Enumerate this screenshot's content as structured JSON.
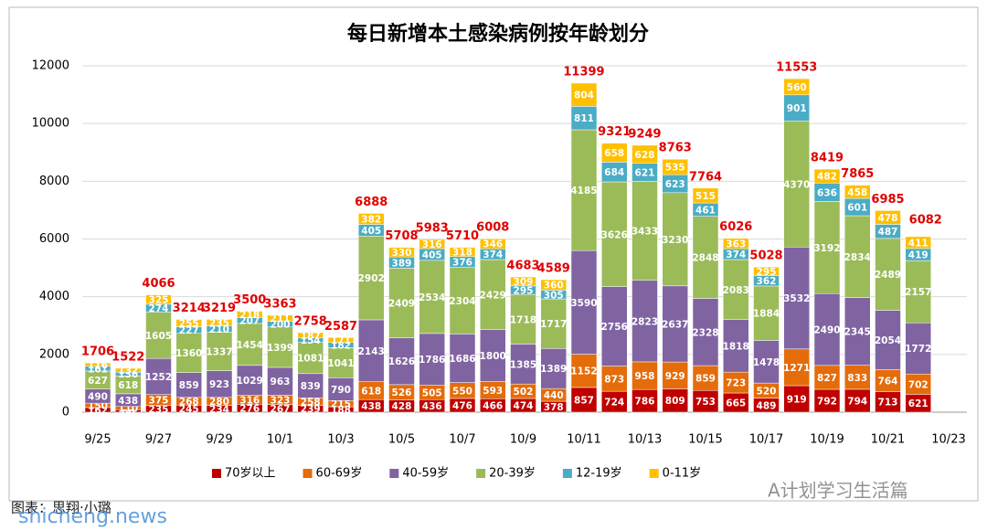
{
  "chart_data": {
    "type": "stacked-bar",
    "title": "每日新增本土感染病例按年龄划分",
    "categories": [
      "9/25",
      null,
      "9/27",
      null,
      "9/29",
      null,
      "10/1",
      null,
      "10/3",
      null,
      "10/5",
      null,
      "10/7",
      null,
      "10/9",
      null,
      "10/11",
      null,
      "10/13",
      null,
      "10/15",
      null,
      "10/17",
      null,
      "10/19",
      null,
      "10/21",
      null,
      "10/23"
    ],
    "series": [
      {
        "name": "70岁以上",
        "color": "#c00000",
        "values": [
          162,
          88,
          235,
          245,
          234,
          276,
          267,
          239,
          188,
          438,
          428,
          436,
          476,
          466,
          474,
          378,
          857,
          724,
          786,
          809,
          753,
          665,
          489,
          919,
          792,
          794,
          713,
          621,
          null
        ]
      },
      {
        "name": "60-69岁",
        "color": "#e46c0a",
        "values": [
          150,
          110,
          375,
          268,
          280,
          316,
          323,
          258,
          215,
          618,
          526,
          505,
          550,
          593,
          502,
          440,
          1152,
          873,
          958,
          929,
          859,
          723,
          520,
          1271,
          827,
          833,
          764,
          702,
          null
        ]
      },
      {
        "name": "40-59岁",
        "color": "#8064a2",
        "values": [
          490,
          438,
          1252,
          859,
          923,
          1029,
          963,
          839,
          790,
          2143,
          1626,
          1786,
          1686,
          1800,
          1385,
          1389,
          3590,
          2756,
          2823,
          2637,
          2328,
          1818,
          1478,
          3532,
          2490,
          2345,
          2054,
          1772,
          null
        ]
      },
      {
        "name": "20-39岁",
        "color": "#9bbb59",
        "values": [
          627,
          618,
          1605,
          1360,
          1337,
          1454,
          1399,
          1081,
          1041,
          2902,
          2409,
          2534,
          2304,
          2429,
          1718,
          1717,
          4185,
          3626,
          3433,
          3230,
          2848,
          2083,
          1884,
          4370,
          3192,
          2834,
          2489,
          2157,
          null
        ]
      },
      {
        "name": "12-19岁",
        "color": "#4bacc6",
        "values": [
          161,
          136,
          274,
          227,
          210,
          207,
          200,
          154,
          182,
          405,
          389,
          405,
          376,
          374,
          295,
          305,
          811,
          684,
          621,
          623,
          461,
          374,
          362,
          901,
          636,
          601,
          487,
          419,
          null
        ]
      },
      {
        "name": "0-11岁",
        "color": "#ffc000",
        "values": [
          116,
          132,
          325,
          255,
          235,
          218,
          211,
          187,
          171,
          382,
          330,
          316,
          318,
          346,
          309,
          360,
          804,
          658,
          628,
          535,
          515,
          363,
          295,
          560,
          482,
          458,
          478,
          411,
          null
        ]
      }
    ],
    "totals": [
      1706,
      1522,
      4066,
      3214,
      3219,
      3500,
      3363,
      2758,
      2587,
      6888,
      5708,
      5983,
      5710,
      6008,
      4683,
      4589,
      11399,
      9321,
      9249,
      8763,
      7764,
      6026,
      5028,
      11553,
      8419,
      7865,
      6985,
      6082,
      null
    ],
    "ylim": [
      0,
      12000
    ],
    "yticks": [
      0,
      2000,
      4000,
      6000,
      8000,
      10000,
      12000
    ],
    "grid": true,
    "legend": "bottom",
    "credit": "图表：思翔·小璐",
    "watermarks": [
      "shicheng.news",
      "A计划学习生活篇"
    ]
  }
}
